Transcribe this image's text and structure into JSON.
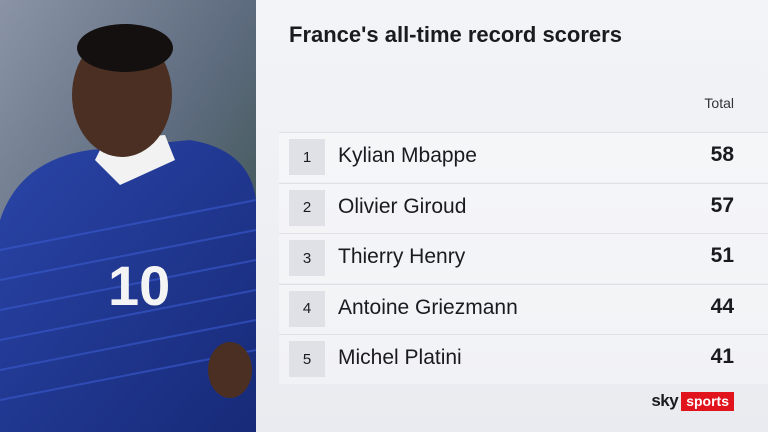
{
  "title": "France's all-time record scorers",
  "table": {
    "column_header": "Total",
    "rows": [
      {
        "rank": 1,
        "name": "Kylian Mbappe",
        "total": 58
      },
      {
        "rank": 2,
        "name": "Olivier Giroud",
        "total": 57
      },
      {
        "rank": 3,
        "name": "Thierry Henry",
        "total": 51
      },
      {
        "rank": 4,
        "name": "Antoine Griezmann",
        "total": 44
      },
      {
        "rank": 5,
        "name": "Michel Platini",
        "total": 41
      }
    ]
  },
  "logo": {
    "brand": "sky",
    "product": "sports"
  }
}
